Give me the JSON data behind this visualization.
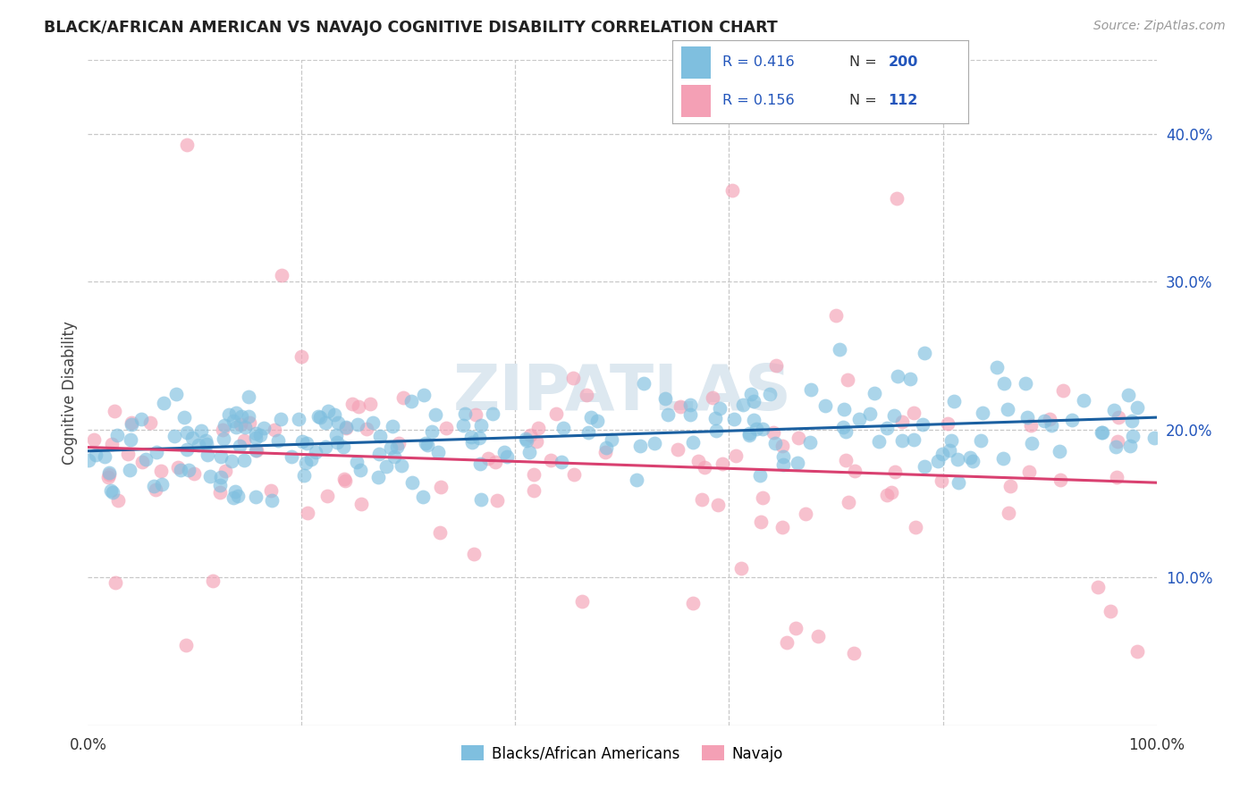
{
  "title": "BLACK/AFRICAN AMERICAN VS NAVAJO COGNITIVE DISABILITY CORRELATION CHART",
  "source": "Source: ZipAtlas.com",
  "ylabel": "Cognitive Disability",
  "xlim": [
    0,
    100
  ],
  "ylim": [
    0,
    45
  ],
  "yticks": [
    10,
    20,
    30,
    40
  ],
  "ytick_labels": [
    "10.0%",
    "20.0%",
    "30.0%",
    "40.0%"
  ],
  "blue_R": "0.416",
  "blue_N": "200",
  "pink_R": "0.156",
  "pink_N": "112",
  "blue_color": "#7fbfdf",
  "pink_color": "#f4a0b5",
  "blue_line_color": "#1a5fa0",
  "pink_line_color": "#d94070",
  "legend_text_color": "#333333",
  "legend_val_color": "#2255bb",
  "background_color": "#ffffff",
  "grid_color": "#c8c8c8",
  "title_color": "#222222",
  "source_color": "#999999",
  "watermark": "ZIPATLAS",
  "watermark_color": "#dde8f0",
  "seed": 7
}
